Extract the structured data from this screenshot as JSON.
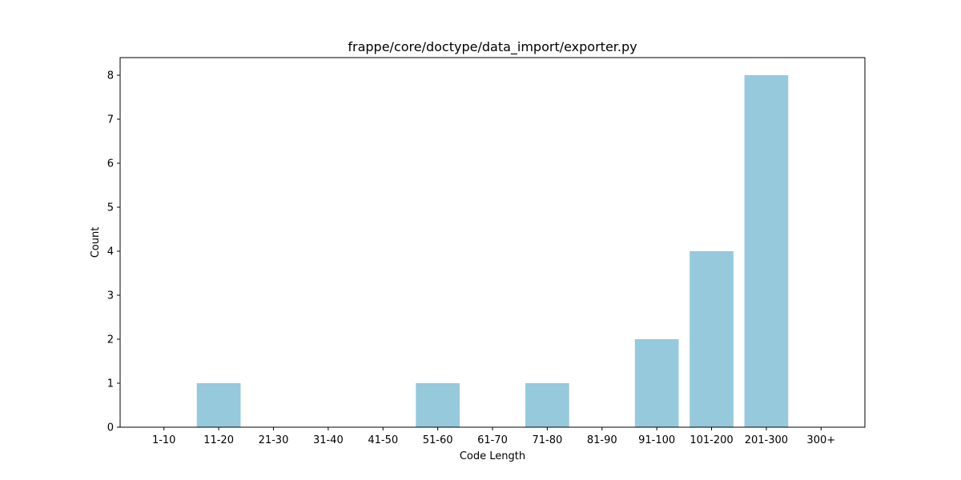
{
  "chart_data": {
    "type": "bar",
    "title": "frappe/core/doctype/data_import/exporter.py",
    "xlabel": "Code Length",
    "ylabel": "Count",
    "categories": [
      "1-10",
      "11-20",
      "21-30",
      "31-40",
      "41-50",
      "51-60",
      "61-70",
      "71-80",
      "81-90",
      "91-100",
      "101-200",
      "201-300",
      "300+"
    ],
    "values": [
      0,
      1,
      0,
      0,
      0,
      1,
      0,
      1,
      0,
      2,
      4,
      8,
      0
    ],
    "ylim": [
      0,
      8.4
    ],
    "yticks": [
      0,
      1,
      2,
      3,
      4,
      5,
      6,
      7,
      8
    ],
    "grid": false,
    "legend": "none",
    "colors": {
      "bar": "#96c9dc",
      "axis": "#000000",
      "background": "#ffffff"
    }
  }
}
